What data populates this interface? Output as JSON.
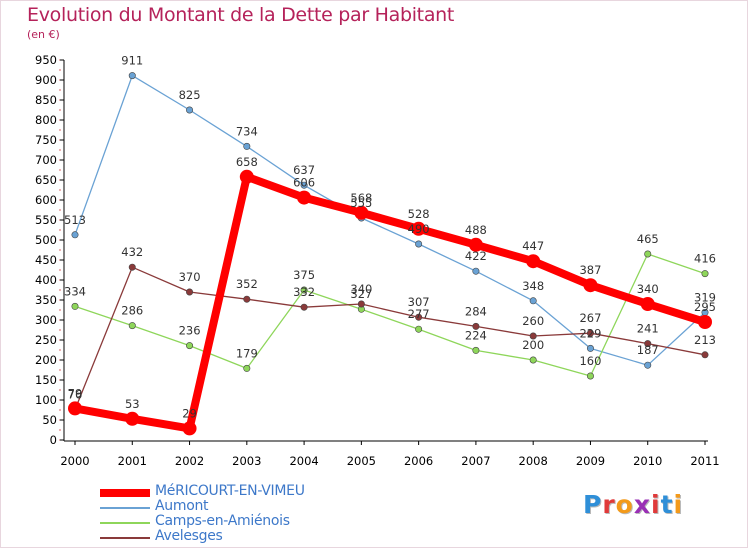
{
  "title": "Evolution du Montant de la Dette par Habitant",
  "subtitle": "(en €)",
  "logo": {
    "text": "Proxiti",
    "letters": [
      "P",
      "r",
      "o",
      "x",
      "i",
      "t",
      "i"
    ],
    "colors": [
      "#2f8fd8",
      "#e03a3a",
      "#f39a1a",
      "#9a2fb5",
      "#e03a3a",
      "#2f8fd8",
      "#f39a1a"
    ]
  },
  "chart_data": {
    "type": "line",
    "title": "Evolution du Montant de la Dette par Habitant",
    "ylabel": "(en €)",
    "x": [
      2000,
      2001,
      2002,
      2003,
      2004,
      2005,
      2006,
      2007,
      2008,
      2009,
      2010,
      2011
    ],
    "ylim": [
      0,
      950
    ],
    "yticks": [
      0,
      50,
      100,
      150,
      200,
      250,
      300,
      350,
      400,
      450,
      500,
      550,
      600,
      650,
      700,
      750,
      800,
      850,
      900,
      950
    ],
    "grid": "none",
    "legend": "bottom-left",
    "series": [
      {
        "name": "MéRICOURT-EN-VIMEU",
        "color": "#ff0000",
        "emphasis": true,
        "values": [
          79,
          53,
          29,
          658,
          606,
          568,
          528,
          488,
          447,
          387,
          340,
          295
        ]
      },
      {
        "name": "Aumont",
        "color": "#6aa2d4",
        "emphasis": false,
        "values": [
          513,
          911,
          825,
          734,
          637,
          555,
          490,
          422,
          348,
          229,
          187,
          319
        ]
      },
      {
        "name": "Camps-en-Amiénois",
        "color": "#8ed65a",
        "emphasis": false,
        "values": [
          334,
          286,
          236,
          179,
          375,
          327,
          277,
          224,
          200,
          160,
          465,
          416
        ]
      },
      {
        "name": "Avelesges",
        "color": "#8a3a3a",
        "emphasis": false,
        "values": [
          76,
          432,
          370,
          352,
          332,
          340,
          307,
          284,
          260,
          267,
          241,
          213
        ]
      }
    ]
  }
}
